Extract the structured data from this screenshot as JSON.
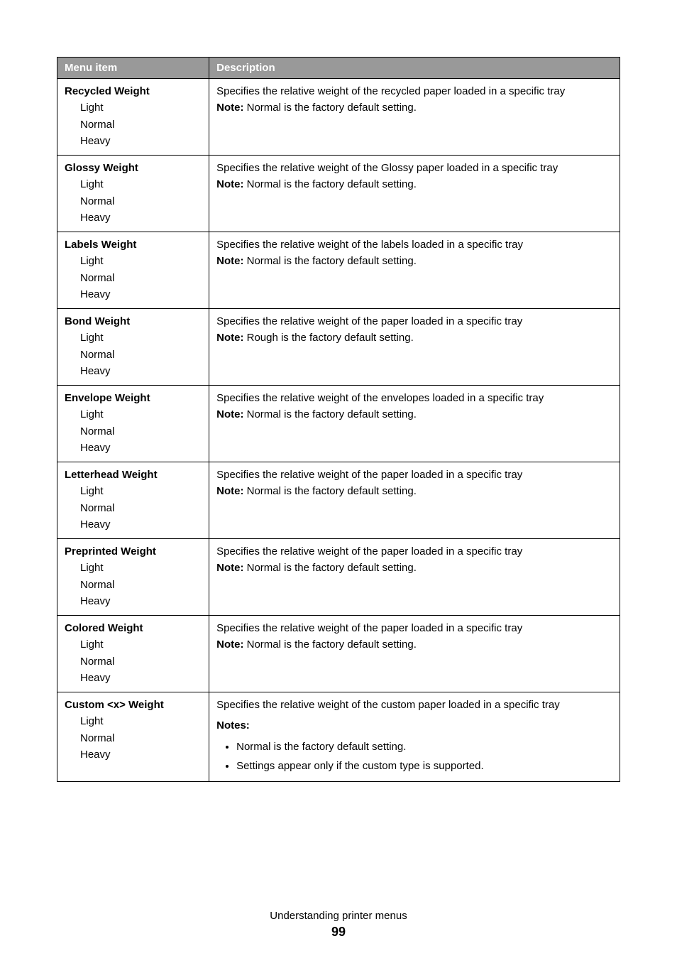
{
  "table": {
    "headers": {
      "menu": "Menu item",
      "desc": "Description"
    },
    "rows": [
      {
        "title": "Recycled Weight",
        "opt1": "Light",
        "opt2": "Normal",
        "opt3": "Heavy",
        "desc": "Specifies the relative weight of the recycled paper loaded in a specific tray",
        "note_label": "Note:",
        "note": " Normal is the factory default setting."
      },
      {
        "title": "Glossy Weight",
        "opt1": "Light",
        "opt2": "Normal",
        "opt3": "Heavy",
        "desc": "Specifies the relative weight of the Glossy paper loaded in a specific tray",
        "note_label": "Note:",
        "note": " Normal is the factory default setting."
      },
      {
        "title": "Labels Weight",
        "opt1": "Light",
        "opt2": "Normal",
        "opt3": "Heavy",
        "desc": "Specifies the relative weight of the labels loaded in a specific tray",
        "note_label": "Note:",
        "note": " Normal is the factory default setting."
      },
      {
        "title": "Bond Weight",
        "opt1": "Light",
        "opt2": "Normal",
        "opt3": "Heavy",
        "desc": "Specifies the relative weight of the paper loaded in a specific tray",
        "note_label": "Note:",
        "note": " Rough is the factory default setting."
      },
      {
        "title": "Envelope Weight",
        "opt1": "Light",
        "opt2": "Normal",
        "opt3": "Heavy",
        "desc": "Specifies the relative weight of the envelopes loaded in a specific tray",
        "note_label": "Note:",
        "note": " Normal is the factory default setting."
      },
      {
        "title": "Letterhead Weight",
        "opt1": "Light",
        "opt2": "Normal",
        "opt3": "Heavy",
        "desc": "Specifies the relative weight of the paper loaded in a specific tray",
        "note_label": "Note:",
        "note": " Normal is the factory default setting."
      },
      {
        "title": "Preprinted Weight",
        "opt1": "Light",
        "opt2": "Normal",
        "opt3": "Heavy",
        "desc": "Specifies the relative weight of the paper loaded in a specific tray",
        "note_label": "Note:",
        "note": " Normal is the factory default setting."
      },
      {
        "title": "Colored Weight",
        "opt1": "Light",
        "opt2": "Normal",
        "opt3": "Heavy",
        "desc": "Specifies the relative weight of the paper loaded in a specific tray",
        "note_label": "Note:",
        "note": " Normal is the factory default setting."
      }
    ],
    "custom_row": {
      "title": "Custom <x> Weight",
      "opt1": "Light",
      "opt2": "Normal",
      "opt3": "Heavy",
      "desc": "Specifies the relative weight of the custom paper loaded in a specific tray",
      "notes_label": "Notes:",
      "bullet1": "Normal is the factory default setting.",
      "bullet2": "Settings appear only if the custom type is supported."
    }
  },
  "footer": {
    "title": "Understanding printer menus",
    "page": "99"
  }
}
